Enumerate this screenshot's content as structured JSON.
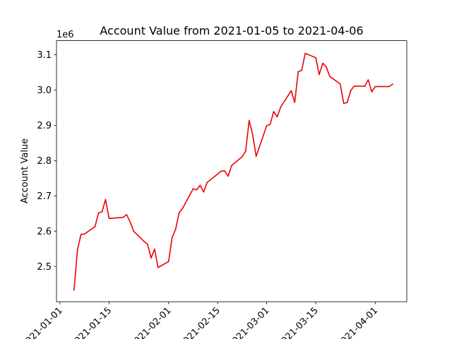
{
  "chart_data": {
    "type": "line",
    "title": "Account Value from 2021-01-05 to 2021-04-06",
    "xlabel": "",
    "ylabel": "Account Value",
    "y_offset_label": "1e6",
    "x_axis_type": "date",
    "xlim": [
      "2020-12-31",
      "2021-04-10"
    ],
    "ylim": [
      2.4,
      3.14
    ],
    "grid": false,
    "legend": "none",
    "x_ticks": [
      {
        "date": "2021-01-01",
        "label": "2021-01-01"
      },
      {
        "date": "2021-01-15",
        "label": "2021-01-15"
      },
      {
        "date": "2021-02-01",
        "label": "2021-02-01"
      },
      {
        "date": "2021-02-15",
        "label": "2021-02-15"
      },
      {
        "date": "2021-03-01",
        "label": "2021-03-01"
      },
      {
        "date": "2021-03-15",
        "label": "2021-03-15"
      },
      {
        "date": "2021-04-01",
        "label": "2021-04-01"
      }
    ],
    "y_ticks": [
      {
        "value": 2.5,
        "label": "2.5"
      },
      {
        "value": 2.6,
        "label": "2.6"
      },
      {
        "value": 2.7,
        "label": "2.7"
      },
      {
        "value": 2.8,
        "label": "2.8"
      },
      {
        "value": 2.9,
        "label": "2.9"
      },
      {
        "value": 3.0,
        "label": "3.0"
      },
      {
        "value": 3.1,
        "label": "3.1"
      }
    ],
    "series": [
      {
        "color": "#ee0000",
        "points": [
          [
            "2021-01-05",
            2.433
          ],
          [
            "2021-01-06",
            2.548
          ],
          [
            "2021-01-07",
            2.591
          ],
          [
            "2021-01-08",
            2.592
          ],
          [
            "2021-01-11",
            2.613
          ],
          [
            "2021-01-12",
            2.652
          ],
          [
            "2021-01-13",
            2.655
          ],
          [
            "2021-01-14",
            2.69
          ],
          [
            "2021-01-15",
            2.636
          ],
          [
            "2021-01-19",
            2.639
          ],
          [
            "2021-01-20",
            2.647
          ],
          [
            "2021-01-21",
            2.627
          ],
          [
            "2021-01-22",
            2.6
          ],
          [
            "2021-01-25",
            2.571
          ],
          [
            "2021-01-26",
            2.563
          ],
          [
            "2021-01-27",
            2.524
          ],
          [
            "2021-01-28",
            2.549
          ],
          [
            "2021-01-29",
            2.497
          ],
          [
            "2021-02-01",
            2.514
          ],
          [
            "2021-02-02",
            2.582
          ],
          [
            "2021-02-03",
            2.605
          ],
          [
            "2021-02-04",
            2.652
          ],
          [
            "2021-02-05",
            2.665
          ],
          [
            "2021-02-08",
            2.72
          ],
          [
            "2021-02-09",
            2.717
          ],
          [
            "2021-02-10",
            2.73
          ],
          [
            "2021-02-11",
            2.711
          ],
          [
            "2021-02-12",
            2.738
          ],
          [
            "2021-02-16",
            2.77
          ],
          [
            "2021-02-17",
            2.771
          ],
          [
            "2021-02-18",
            2.756
          ],
          [
            "2021-02-19",
            2.786
          ],
          [
            "2021-02-22",
            2.811
          ],
          [
            "2021-02-23",
            2.827
          ],
          [
            "2021-02-24",
            2.914
          ],
          [
            "2021-02-25",
            2.873
          ],
          [
            "2021-02-26",
            2.812
          ],
          [
            "2021-03-01",
            2.899
          ],
          [
            "2021-03-02",
            2.903
          ],
          [
            "2021-03-03",
            2.939
          ],
          [
            "2021-03-04",
            2.924
          ],
          [
            "2021-03-05",
            2.952
          ],
          [
            "2021-03-08",
            2.998
          ],
          [
            "2021-03-09",
            2.965
          ],
          [
            "2021-03-10",
            3.052
          ],
          [
            "2021-03-11",
            3.056
          ],
          [
            "2021-03-12",
            3.104
          ],
          [
            "2021-03-15",
            3.092
          ],
          [
            "2021-03-16",
            3.044
          ],
          [
            "2021-03-17",
            3.076
          ],
          [
            "2021-03-18",
            3.066
          ],
          [
            "2021-03-19",
            3.039
          ],
          [
            "2021-03-22",
            3.017
          ],
          [
            "2021-03-23",
            2.962
          ],
          [
            "2021-03-24",
            2.965
          ],
          [
            "2021-03-25",
            2.999
          ],
          [
            "2021-03-26",
            3.011
          ],
          [
            "2021-03-29",
            3.011
          ],
          [
            "2021-03-30",
            3.029
          ],
          [
            "2021-03-31",
            2.995
          ],
          [
            "2021-04-01",
            3.01
          ],
          [
            "2021-04-05",
            3.01
          ],
          [
            "2021-04-06",
            3.017
          ]
        ]
      }
    ]
  }
}
